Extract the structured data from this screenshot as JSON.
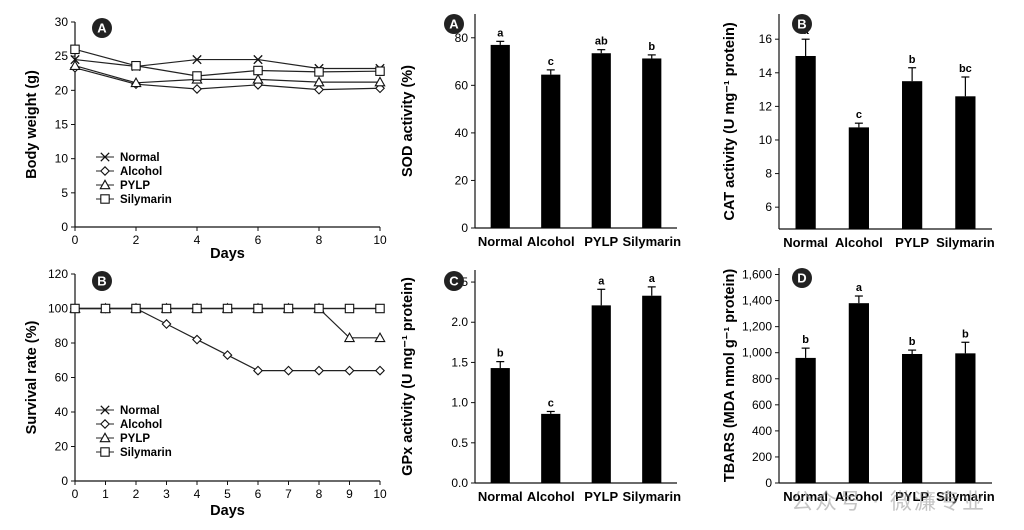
{
  "watermark": "公众号 · 微濂专业",
  "chart_data": [
    {
      "type": "line",
      "badge": "A",
      "xlabel": "Days",
      "ylabel": "Body weight (g)",
      "xlim": [
        0,
        10
      ],
      "ylim": [
        0,
        30
      ],
      "xticks": [
        0,
        2,
        4,
        6,
        8,
        10
      ],
      "yticks": [
        0,
        5,
        10,
        15,
        20,
        25,
        30
      ],
      "legend_position": "lower-left",
      "series": [
        {
          "name": "Normal",
          "marker": "x",
          "x": [
            0,
            2,
            4,
            6,
            8,
            10
          ],
          "values": [
            24.5,
            23.5,
            24.5,
            24.5,
            23.2,
            23.2
          ]
        },
        {
          "name": "Alcohol",
          "marker": "diamond",
          "x": [
            0,
            2,
            4,
            6,
            8,
            10
          ],
          "values": [
            23.3,
            20.9,
            20.2,
            20.8,
            20.1,
            20.3
          ]
        },
        {
          "name": "PYLP",
          "marker": "triangle",
          "x": [
            0,
            2,
            4,
            6,
            8,
            10
          ],
          "values": [
            23.6,
            21.1,
            21.6,
            21.6,
            21.2,
            21.2
          ]
        },
        {
          "name": "Silymarin",
          "marker": "square",
          "x": [
            0,
            2,
            4,
            6,
            8,
            10
          ],
          "values": [
            26.0,
            23.6,
            22.1,
            22.9,
            22.7,
            22.8
          ]
        }
      ]
    },
    {
      "type": "line",
      "badge": "B",
      "xlabel": "Days",
      "ylabel": "Survival rate (%)",
      "xlim": [
        0,
        10
      ],
      "ylim": [
        0,
        120
      ],
      "xticks": [
        0,
        1,
        2,
        3,
        4,
        5,
        6,
        7,
        8,
        9,
        10
      ],
      "yticks": [
        0,
        20,
        40,
        60,
        80,
        100,
        120
      ],
      "legend_position": "lower-left",
      "series": [
        {
          "name": "Normal",
          "marker": "x",
          "x": [
            0,
            1,
            2,
            3,
            4,
            5,
            6,
            7,
            8,
            9,
            10
          ],
          "values": [
            100,
            100,
            100,
            100,
            100,
            100,
            100,
            100,
            100,
            100,
            100
          ]
        },
        {
          "name": "Alcohol",
          "marker": "diamond",
          "x": [
            0,
            1,
            2,
            3,
            4,
            5,
            6,
            7,
            8,
            9,
            10
          ],
          "values": [
            100,
            100,
            100,
            91,
            82,
            73,
            64,
            64,
            64,
            64,
            64
          ]
        },
        {
          "name": "PYLP",
          "marker": "triangle",
          "x": [
            0,
            1,
            2,
            3,
            4,
            5,
            6,
            7,
            8,
            9,
            10
          ],
          "values": [
            100,
            100,
            100,
            100,
            100,
            100,
            100,
            100,
            100,
            83,
            83
          ]
        },
        {
          "name": "Silymarin",
          "marker": "square",
          "x": [
            0,
            1,
            2,
            3,
            4,
            5,
            6,
            7,
            8,
            9,
            10
          ],
          "values": [
            100,
            100,
            100,
            100,
            100,
            100,
            100,
            100,
            100,
            100,
            100
          ]
        }
      ]
    },
    {
      "type": "bar",
      "badge": "A",
      "ylabel": "SOD activity (%)",
      "categories": [
        "Normal",
        "Alcohol",
        "PYLP",
        "Silymarin"
      ],
      "values": [
        77.0,
        64.5,
        73.5,
        71.3
      ],
      "errors": [
        1.5,
        2.0,
        1.5,
        1.5
      ],
      "letters": [
        "a",
        "c",
        "ab",
        "b"
      ],
      "ylim": [
        0,
        90
      ],
      "yticks": [
        0,
        20,
        40,
        60,
        80
      ]
    },
    {
      "type": "bar",
      "badge": "C",
      "ylabel": "GPx activity (U mg⁻¹ protein)",
      "categories": [
        "Normal",
        "Alcohol",
        "PYLP",
        "Silymarin"
      ],
      "values": [
        1.43,
        0.86,
        2.21,
        2.33
      ],
      "errors": [
        0.08,
        0.03,
        0.2,
        0.11
      ],
      "letters": [
        "b",
        "c",
        "a",
        "a"
      ],
      "ylim": [
        0,
        2.65
      ],
      "yticks": [
        0.0,
        0.5,
        1.0,
        1.5,
        2.0,
        2.5
      ],
      "ytick_labels": [
        "0.0",
        "0.5",
        "1.0",
        "1.5",
        "2.0",
        "2.5"
      ]
    },
    {
      "type": "bar",
      "badge": "B",
      "ylabel": "CAT activity (U mg⁻¹ protein)",
      "categories": [
        "Normal",
        "Alcohol",
        "PYLP",
        "Silymarin"
      ],
      "values": [
        15.0,
        10.75,
        13.5,
        12.6
      ],
      "errors": [
        1.0,
        0.25,
        0.8,
        1.15
      ],
      "letters": [
        "a",
        "c",
        "b",
        "bc"
      ],
      "ylim": [
        4.7,
        17.5
      ],
      "yticks": [
        6,
        8,
        10,
        12,
        14,
        16
      ]
    },
    {
      "type": "bar",
      "badge": "D",
      "ylabel": "TBARS (MDA nmol g⁻¹ protein)",
      "categories": [
        "Normal",
        "Alcohol",
        "PYLP",
        "Silymarin"
      ],
      "values": [
        960,
        1380,
        990,
        995
      ],
      "errors": [
        75,
        55,
        30,
        85
      ],
      "letters": [
        "b",
        "a",
        "b",
        "b"
      ],
      "ylim": [
        0,
        1650
      ],
      "yticks": [
        0,
        200,
        400,
        600,
        800,
        1000,
        1200,
        1400,
        1600
      ],
      "ytick_labels": [
        "0",
        "200",
        "400",
        "600",
        "800",
        "1,000",
        "1,200",
        "1,400",
        "1,600"
      ]
    }
  ]
}
